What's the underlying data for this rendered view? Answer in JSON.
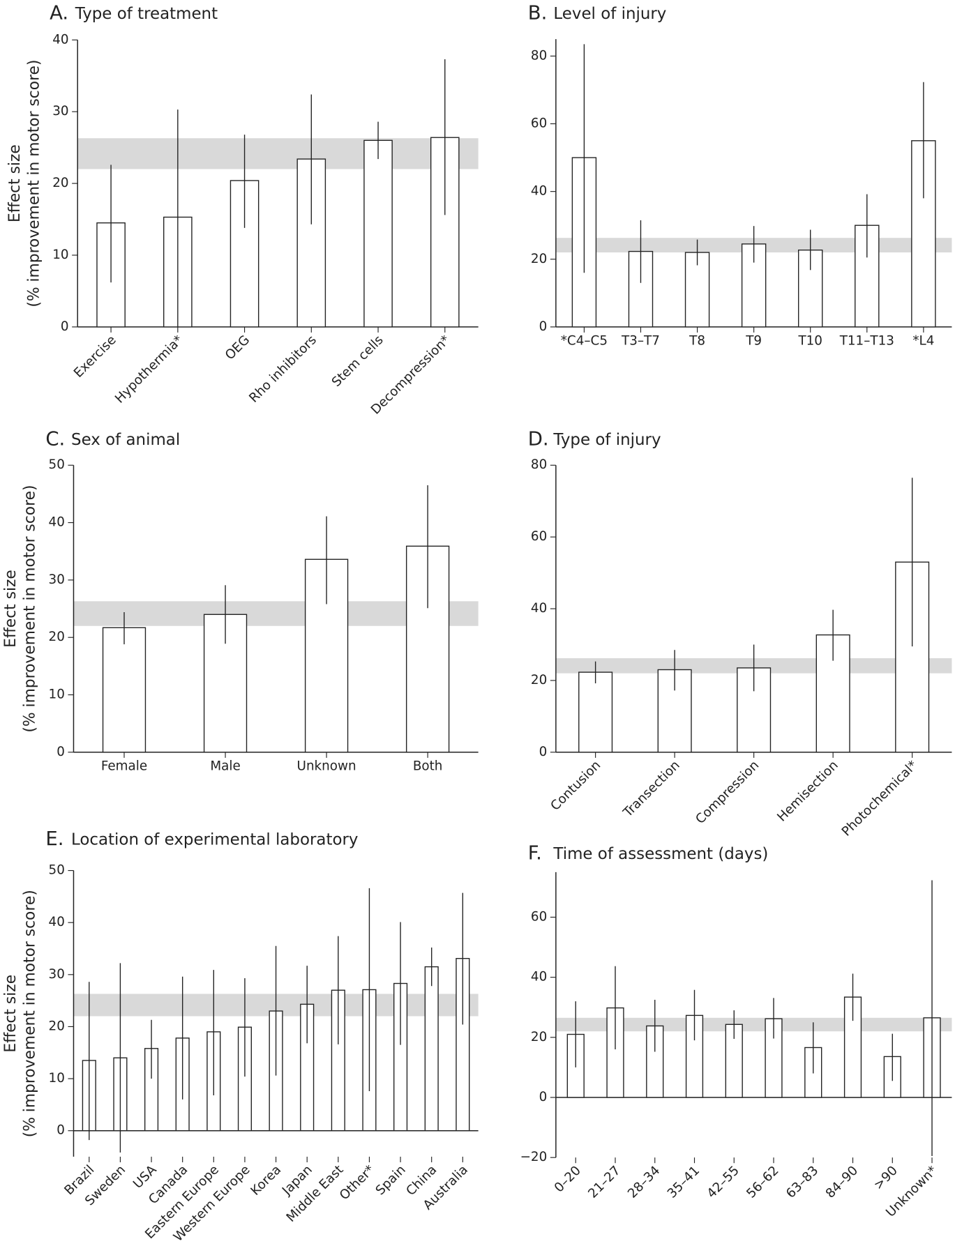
{
  "chart_data": [
    {
      "type": "bar",
      "label": "A.",
      "title": "Type of treatment",
      "ylabel": [
        "Effect size",
        "(% improvement in motor score)"
      ],
      "categories": [
        "Exercise",
        "Hypothermia*",
        "OEG",
        "Rho inhibitors",
        "Stem cells",
        "Decompression*"
      ],
      "values": [
        14.5,
        15.3,
        20.4,
        23.4,
        26,
        26.4
      ],
      "ci_low": [
        6.2,
        0,
        13.8,
        14.3,
        23.4,
        15.6
      ],
      "ci_high": [
        22.6,
        30.3,
        26.8,
        32.4,
        28.6,
        37.3
      ],
      "band": [
        22,
        26.3
      ],
      "ylim": [
        0,
        40
      ],
      "yticks": [
        0,
        10,
        20,
        30,
        40
      ],
      "xlabel_rotation": 45
    },
    {
      "type": "bar",
      "label": "B.",
      "title": "Level of injury",
      "categories": [
        "*C4–C5",
        "T3–T7",
        "T8",
        "T9",
        "T10",
        "T11–T13",
        "*L4"
      ],
      "values": [
        50,
        22.3,
        22,
        24.5,
        22.7,
        30,
        55
      ],
      "ci_low": [
        16,
        13,
        18.2,
        19,
        16.8,
        20.5,
        38
      ],
      "ci_high": [
        83.5,
        31.5,
        25.8,
        29.8,
        28.7,
        39.2,
        72.3
      ],
      "band": [
        22,
        26.3
      ],
      "ylim": [
        0,
        85
      ],
      "yticks": [
        0,
        20,
        40,
        60,
        80
      ],
      "xlabel_rotation": 0
    },
    {
      "type": "bar",
      "label": "C.",
      "title": "Sex of animal",
      "ylabel": [
        "Effect size",
        "(% improvement in motor score)"
      ],
      "categories": [
        "Female",
        "Male",
        "Unknown",
        "Both"
      ],
      "values": [
        21.7,
        24,
        33.6,
        35.9
      ],
      "ci_low": [
        18.8,
        18.9,
        25.8,
        25.1
      ],
      "ci_high": [
        24.4,
        29.1,
        41.1,
        46.5
      ],
      "band": [
        22,
        26.3
      ],
      "ylim": [
        0,
        50
      ],
      "yticks": [
        0,
        10,
        20,
        30,
        40,
        50
      ],
      "xlabel_rotation": 0
    },
    {
      "type": "bar",
      "label": "D.",
      "title": "Type of injury",
      "categories": [
        "Contusion",
        "Transection",
        "Compression",
        "Hemisection",
        "Photochemical*"
      ],
      "values": [
        22.3,
        23,
        23.5,
        32.7,
        53
      ],
      "ci_low": [
        19.2,
        17.2,
        17,
        25.5,
        29.5
      ],
      "ci_high": [
        25.3,
        28.5,
        30,
        39.7,
        76.5
      ],
      "band": [
        22,
        26.2
      ],
      "ylim": [
        0,
        80
      ],
      "yticks": [
        0,
        20,
        40,
        60,
        80
      ],
      "xlabel_rotation": 45
    },
    {
      "type": "bar",
      "label": "E.",
      "title": "Location of experimental laboratory",
      "ylabel": [
        "Effect size",
        "(% improvement in motor score)"
      ],
      "categories": [
        "Brazil",
        "Sweden",
        "USA",
        "Canada",
        "Eastern Europe",
        "Western Europe",
        "Korea",
        "Japan",
        "Middle East",
        "Other*",
        "Spain",
        "China",
        "Australia"
      ],
      "values": [
        13.5,
        14,
        15.8,
        17.8,
        19,
        19.9,
        23,
        24.3,
        27,
        27.1,
        28.3,
        31.5,
        33.1
      ],
      "ci_low": [
        -1.8,
        -4.2,
        10,
        6,
        6.8,
        10.4,
        10.6,
        16.8,
        16.6,
        7.6,
        16.5,
        27.8,
        20.4
      ],
      "ci_high": [
        28.6,
        32.2,
        21.3,
        29.6,
        30.9,
        29.3,
        35.5,
        31.7,
        37.4,
        46.6,
        40.1,
        35.2,
        45.7
      ],
      "band": [
        22,
        26.3
      ],
      "ylim": [
        -5,
        50
      ],
      "yticks": [
        0,
        10,
        20,
        30,
        40,
        50
      ],
      "xlabel_rotation": 45
    },
    {
      "type": "bar",
      "label": "F.",
      "title": "Time of assessment (days)",
      "categories": [
        "0–20",
        "21–27",
        "28–34",
        "35–41",
        "42–55",
        "56–62",
        "63–83",
        "84–90",
        ">90",
        "Unknown*"
      ],
      "values": [
        21,
        29.8,
        23.8,
        27.3,
        24.3,
        26.2,
        16.6,
        33.4,
        13.6,
        26.5
      ],
      "ci_low": [
        10,
        16,
        15.2,
        19,
        19.5,
        19.6,
        8,
        25.5,
        5.5,
        -19.5
      ],
      "ci_high": [
        32,
        43.7,
        32.5,
        35.8,
        29,
        33.1,
        25,
        41.2,
        21.2,
        72.3
      ],
      "band": [
        22,
        26.5
      ],
      "ylim": [
        -20,
        75
      ],
      "yticks": [
        {
          "value": -20,
          "label": "−20"
        },
        0,
        20,
        40,
        60
      ],
      "xlabel_rotation": 45
    }
  ]
}
